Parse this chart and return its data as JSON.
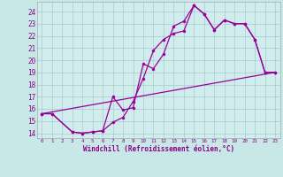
{
  "xlabel": "Windchill (Refroidissement éolien,°C)",
  "background_color": "#c8e8e8",
  "plot_bg_color": "#d0ecec",
  "grid_color": "#a8cccc",
  "line_color": "#990099",
  "xlim_min": -0.5,
  "xlim_max": 23.5,
  "ylim_min": 13.6,
  "ylim_max": 24.8,
  "yticks": [
    14,
    15,
    16,
    17,
    18,
    19,
    20,
    21,
    22,
    23,
    24
  ],
  "xticks": [
    0,
    1,
    2,
    3,
    4,
    5,
    6,
    7,
    8,
    9,
    10,
    11,
    12,
    13,
    14,
    15,
    16,
    17,
    18,
    19,
    20,
    21,
    22,
    23
  ],
  "curve1_x": [
    0,
    1,
    3,
    4,
    5,
    6,
    7,
    8,
    9,
    10,
    11,
    12,
    13,
    14,
    15,
    16,
    17,
    18,
    19,
    20,
    21,
    22,
    23
  ],
  "curve1_y": [
    15.6,
    15.6,
    14.1,
    14.0,
    14.1,
    14.2,
    17.0,
    15.9,
    16.1,
    19.7,
    19.3,
    20.5,
    22.8,
    23.2,
    24.5,
    23.8,
    22.5,
    23.3,
    23.0,
    23.0,
    21.7,
    19.0,
    19.0
  ],
  "curve2_x": [
    0,
    1,
    3,
    4,
    5,
    6,
    7,
    8,
    9,
    10,
    11,
    12,
    13,
    14,
    15,
    16,
    17,
    18,
    19,
    20,
    21,
    22,
    23
  ],
  "curve2_y": [
    15.6,
    15.6,
    14.1,
    14.0,
    14.1,
    14.2,
    14.9,
    15.3,
    16.6,
    18.5,
    20.8,
    21.7,
    22.2,
    22.4,
    24.5,
    23.8,
    22.5,
    23.3,
    23.0,
    23.0,
    21.7,
    19.0,
    19.0
  ],
  "curve3_x": [
    0,
    23
  ],
  "curve3_y": [
    15.6,
    19.0
  ],
  "tick_color": "#880088",
  "label_color": "#880088",
  "xlabel_fontsize": 5.5,
  "ytick_fontsize": 5.5,
  "xtick_fontsize": 4.2
}
